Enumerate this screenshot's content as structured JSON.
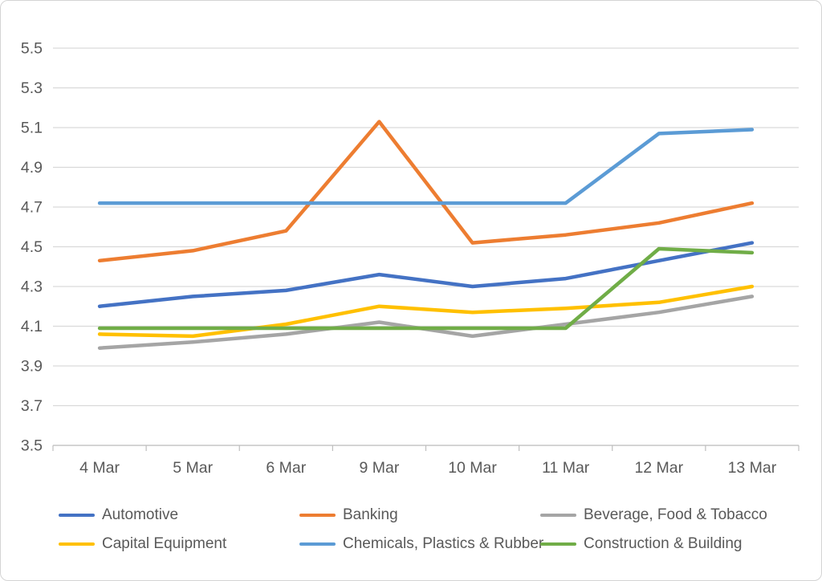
{
  "window": {
    "background": "#ffffff",
    "frame_border_color": "#d4d4d4"
  },
  "palette": {
    "text_color": "#595959",
    "gridline_color": "#d9d9d9",
    "axis_line_color": "#bfbfbf"
  },
  "chart_data": {
    "type": "line",
    "title": "",
    "xlabel": "",
    "ylabel": "",
    "grid": true,
    "legend_position": "bottom",
    "ylim": [
      3.5,
      5.5
    ],
    "y_tick_labels": [
      "5.5",
      "5.3",
      "5.1",
      "4.9",
      "4.7",
      "4.5",
      "4.3",
      "4.1",
      "3.9",
      "3.7",
      "3.5"
    ],
    "categories": [
      "4 Mar",
      "5 Mar",
      "6 Mar",
      "9 Mar",
      "10 Mar",
      "11 Mar",
      "12 Mar",
      "13 Mar"
    ],
    "series": [
      {
        "name": "Automotive",
        "color": "#4472C4",
        "values": [
          4.2,
          4.25,
          4.28,
          4.36,
          4.3,
          4.34,
          4.43,
          4.52
        ]
      },
      {
        "name": "Banking",
        "color": "#ED7D31",
        "values": [
          4.43,
          4.48,
          4.58,
          5.13,
          4.52,
          4.56,
          4.62,
          4.72
        ]
      },
      {
        "name": "Beverage, Food & Tobacco",
        "color": "#A5A5A5",
        "values": [
          3.99,
          4.02,
          4.06,
          4.12,
          4.05,
          4.11,
          4.17,
          4.25
        ]
      },
      {
        "name": "Capital Equipment",
        "color": "#FFC000",
        "values": [
          4.06,
          4.05,
          4.11,
          4.2,
          4.17,
          4.19,
          4.22,
          4.3
        ]
      },
      {
        "name": "Chemicals, Plastics & Rubber",
        "color": "#5B9BD5",
        "values": [
          4.72,
          4.72,
          4.72,
          4.72,
          4.72,
          4.72,
          5.07,
          5.09
        ]
      },
      {
        "name": "Construction & Building",
        "color": "#70AD47",
        "values": [
          4.09,
          4.09,
          4.09,
          4.09,
          4.09,
          4.09,
          4.49,
          4.47
        ]
      }
    ]
  }
}
